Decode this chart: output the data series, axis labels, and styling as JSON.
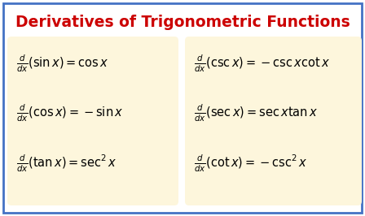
{
  "title": "Derivatives of Trigonometric Functions",
  "title_color": "#CC0000",
  "title_fontsize": 13.5,
  "bg_color": "#FFFFFF",
  "border_color": "#4472C4",
  "border_linewidth": 2.0,
  "box_color": "#FDF6DC",
  "formulas_left": [
    "\\frac{d}{dx}(\\sin x) = \\cos x",
    "\\frac{d}{dx}(\\cos x) = -\\sin x",
    "\\frac{d}{dx}(\\tan x) = \\sec^2 x"
  ],
  "formulas_right": [
    "\\frac{d}{dx}(\\csc x) = -\\csc x\\cot x",
    "\\frac{d}{dx}(\\sec x) = \\sec x\\tan x",
    "\\frac{d}{dx}(\\cot x) = -\\csc^2 x"
  ],
  "formula_fontsize": 10.5
}
